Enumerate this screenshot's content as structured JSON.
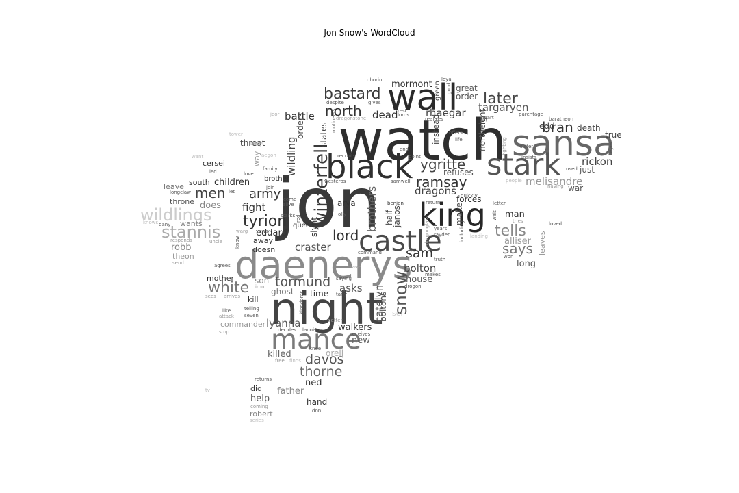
{
  "title": "Jon Snow's WordCloud",
  "words": [
    {
      "text": "jon",
      "weight": 100,
      "shade": "#3a3a3a"
    },
    {
      "text": "watch",
      "weight": 82,
      "shade": "#2e2e2e"
    },
    {
      "text": "night",
      "weight": 64,
      "shade": "#444444"
    },
    {
      "text": "daenerys",
      "weight": 56,
      "shade": "#8a8a8a"
    },
    {
      "text": "wall",
      "weight": 52,
      "shade": "#2a2a2a"
    },
    {
      "text": "sansa",
      "weight": 52,
      "shade": "#666666"
    },
    {
      "text": "black",
      "weight": 48,
      "shade": "#2f2f2f"
    },
    {
      "text": "king",
      "weight": 46,
      "shade": "#262626"
    },
    {
      "text": "stark",
      "weight": 43,
      "shade": "#555555"
    },
    {
      "text": "castle",
      "weight": 41,
      "shade": "#4a4a4a"
    },
    {
      "text": "mance",
      "weight": 39,
      "shade": "#7a7a7a"
    },
    {
      "text": "winterfell",
      "weight": 26,
      "shade": "#3a3a3a"
    },
    {
      "text": "snow",
      "weight": 25,
      "shade": "#555555"
    },
    {
      "text": "stannis",
      "weight": 24,
      "shade": "#aaaaaa"
    },
    {
      "text": "wildlings",
      "weight": 24,
      "shade": "#cccccc"
    },
    {
      "text": "bastard",
      "weight": 22,
      "shade": "#3a3a3a"
    },
    {
      "text": "later",
      "weight": 22,
      "shade": "#444444"
    },
    {
      "text": "tells",
      "weight": 22,
      "shade": "#888888"
    },
    {
      "text": "tyrion",
      "weight": 22,
      "shade": "#333333"
    },
    {
      "text": "white",
      "weight": 22,
      "shade": "#777777"
    },
    {
      "text": "north",
      "weight": 20,
      "shade": "#333333"
    },
    {
      "text": "bran",
      "weight": 20,
      "shade": "#333333"
    },
    {
      "text": "ygritte",
      "weight": 20,
      "shade": "#444444"
    },
    {
      "text": "ramsay",
      "weight": 20,
      "shade": "#333333"
    },
    {
      "text": "men",
      "weight": 20,
      "shade": "#444444"
    },
    {
      "text": "lord",
      "weight": 20,
      "shade": "#333333"
    },
    {
      "text": "says",
      "weight": 20,
      "shade": "#777777"
    },
    {
      "text": "sam",
      "weight": 19,
      "shade": "#333333"
    },
    {
      "text": "tormund",
      "weight": 19,
      "shade": "#555555"
    },
    {
      "text": "davos",
      "weight": 19,
      "shade": "#555555"
    },
    {
      "text": "thorne",
      "weight": 19,
      "shade": "#666666"
    },
    {
      "text": "army",
      "weight": 18,
      "shade": "#333333"
    },
    {
      "text": "brothers",
      "weight": 16,
      "shade": "#666666"
    },
    {
      "text": "catelyn",
      "weight": 15,
      "shade": "#555555"
    },
    {
      "text": "targaryen",
      "weight": 15,
      "shade": "#555555"
    },
    {
      "text": "dead",
      "weight": 15,
      "shade": "#333333"
    },
    {
      "text": "rhaegar",
      "weight": 15,
      "shade": "#444444"
    },
    {
      "text": "dragons",
      "weight": 15,
      "shade": "#444444"
    },
    {
      "text": "bolton",
      "weight": 15,
      "shade": "#444444"
    },
    {
      "text": "asks",
      "weight": 15,
      "shade": "#555555"
    },
    {
      "text": "lyanna",
      "weight": 15,
      "shade": "#555555"
    },
    {
      "text": "craster",
      "weight": 15,
      "shade": "#555555"
    },
    {
      "text": "fight",
      "weight": 15,
      "shade": "#333333"
    },
    {
      "text": "melisandre",
      "weight": 15,
      "shade": "#999999"
    },
    {
      "text": "rickon",
      "weight": 15,
      "shade": "#444444"
    },
    {
      "text": "wildling",
      "weight": 15,
      "shade": "#444444"
    },
    {
      "text": "battle",
      "weight": 15,
      "shade": "#333333"
    },
    {
      "text": "mormont",
      "weight": 13,
      "shade": "#333333"
    },
    {
      "text": "children",
      "weight": 13,
      "shade": "#333333"
    },
    {
      "text": "does",
      "weight": 13,
      "shade": "#888888"
    },
    {
      "text": "robb",
      "weight": 13,
      "shade": "#888888"
    },
    {
      "text": "eddard",
      "weight": 13,
      "shade": "#333333"
    },
    {
      "text": "man",
      "weight": 13,
      "shade": "#333333"
    },
    {
      "text": "alliser",
      "weight": 13,
      "shade": "#999999"
    },
    {
      "text": "long",
      "weight": 13,
      "shade": "#555555"
    },
    {
      "text": "house",
      "weight": 13,
      "shade": "#555555"
    },
    {
      "text": "walkers",
      "weight": 13,
      "shade": "#333333"
    },
    {
      "text": "new",
      "weight": 13,
      "shade": "#666666"
    },
    {
      "text": "killed",
      "weight": 13,
      "shade": "#666666"
    },
    {
      "text": "father",
      "weight": 13,
      "shade": "#888888"
    },
    {
      "text": "ned",
      "weight": 13,
      "shade": "#333333"
    },
    {
      "text": "help",
      "weight": 13,
      "shade": "#555555"
    },
    {
      "text": "hand",
      "weight": 12,
      "shade": "#333333"
    },
    {
      "text": "ghost",
      "weight": 12,
      "shade": "#777777"
    },
    {
      "text": "time",
      "weight": 12,
      "shade": "#333333"
    },
    {
      "text": "son",
      "weight": 12,
      "shade": "#888888"
    },
    {
      "text": "edd",
      "weight": 12,
      "shade": "#444444"
    },
    {
      "text": "death",
      "weight": 12,
      "shade": "#444444"
    },
    {
      "text": "true",
      "weight": 12,
      "shade": "#444444"
    },
    {
      "text": "just",
      "weight": 12,
      "shade": "#555555"
    },
    {
      "text": "war",
      "weight": 12,
      "shade": "#555555"
    },
    {
      "text": "forces",
      "weight": 12,
      "shade": "#333333"
    },
    {
      "text": "refuses",
      "weight": 12,
      "shade": "#555555"
    },
    {
      "text": "states",
      "weight": 12,
      "shade": "#444444"
    },
    {
      "text": "orders",
      "weight": 12,
      "shade": "#444444"
    },
    {
      "text": "instead",
      "weight": 12,
      "shade": "#444444"
    },
    {
      "text": "northern",
      "weight": 12,
      "shade": "#555555"
    },
    {
      "text": "right",
      "weight": 12,
      "shade": "#444444"
    },
    {
      "text": "make",
      "weight": 12,
      "shade": "#444444"
    },
    {
      "text": "leaves",
      "weight": 11,
      "shade": "#999999"
    },
    {
      "text": "great",
      "weight": 12,
      "shade": "#555555"
    },
    {
      "text": "order",
      "weight": 12,
      "shade": "#555555"
    },
    {
      "text": "arya",
      "weight": 12,
      "shade": "#333333"
    },
    {
      "text": "janos",
      "weight": 12,
      "shade": "#444444"
    },
    {
      "text": "half",
      "weight": 12,
      "shade": "#444444"
    },
    {
      "text": "slynt",
      "weight": 12,
      "shade": "#333333"
    },
    {
      "text": "boltons",
      "weight": 12,
      "shade": "#555555"
    },
    {
      "text": "orell",
      "weight": 12,
      "shade": "#aaaaaa"
    },
    {
      "text": "threat",
      "weight": 12,
      "shade": "#444444"
    },
    {
      "text": "cersei",
      "weight": 11,
      "shade": "#333333"
    },
    {
      "text": "south",
      "weight": 11,
      "shade": "#333333"
    },
    {
      "text": "leave",
      "weight": 11,
      "shade": "#777777"
    },
    {
      "text": "throne",
      "weight": 11,
      "shade": "#555555"
    },
    {
      "text": "wants",
      "weight": 11,
      "shade": "#888888"
    },
    {
      "text": "theon",
      "weight": 11,
      "shade": "#999999"
    },
    {
      "text": "away",
      "weight": 11,
      "shade": "#333333"
    },
    {
      "text": "doesn",
      "weight": 11,
      "shade": "#333333"
    },
    {
      "text": "mother",
      "weight": 11,
      "shade": "#333333"
    },
    {
      "text": "kill",
      "weight": 11,
      "shade": "#333333"
    },
    {
      "text": "queen",
      "weight": 10,
      "shade": "#333333"
    },
    {
      "text": "brother",
      "weight": 10,
      "shade": "#333333"
    },
    {
      "text": "way",
      "weight": 11,
      "shade": "#999999"
    },
    {
      "text": "commander",
      "weight": 11,
      "shade": "#999999"
    },
    {
      "text": "did",
      "weight": 11,
      "shade": "#333333"
    },
    {
      "text": "robert",
      "weight": 11,
      "shade": "#888888"
    },
    {
      "text": "ser",
      "weight": 11,
      "shade": "#cccccc"
    },
    {
      "text": "green",
      "weight": 10,
      "shade": "#444444"
    },
    {
      "text": "good",
      "weight": 7,
      "shade": "#555555"
    },
    {
      "text": "qhorin",
      "weight": 7,
      "shade": "#555555"
    },
    {
      "text": "loyal",
      "weight": 7,
      "shade": "#555555"
    },
    {
      "text": "despite",
      "weight": 7,
      "shade": "#555555"
    },
    {
      "text": "gives",
      "weight": 7,
      "shade": "#555555"
    },
    {
      "text": "rest",
      "weight": 7,
      "shade": "#555555"
    },
    {
      "text": "lords",
      "weight": 7,
      "shade": "#555555"
    },
    {
      "text": "jeor",
      "weight": 7,
      "shade": "#aaaaaa"
    },
    {
      "text": "dragonstone",
      "weight": 7,
      "shade": "#aaaaaa"
    },
    {
      "text": "mutineers",
      "weight": 7,
      "shade": "#666666"
    },
    {
      "text": "realizes",
      "weight": 7,
      "shade": "#555555"
    },
    {
      "text": "heart",
      "weight": 7,
      "shade": "#555555"
    },
    {
      "text": "parentage",
      "weight": 7,
      "shade": "#555555"
    },
    {
      "text": "baratheon",
      "weight": 7,
      "shade": "#555555"
    },
    {
      "text": "tower",
      "weight": 7,
      "shade": "#bbbbbb"
    },
    {
      "text": "body",
      "weight": 7,
      "shade": "#bbbbbb"
    },
    {
      "text": "aegon",
      "weight": 7,
      "shade": "#bbbbbb"
    },
    {
      "text": "want",
      "weight": 7,
      "shade": "#bbbbbb"
    },
    {
      "text": "recruits",
      "weight": 7,
      "shade": "#555555"
    },
    {
      "text": "end",
      "weight": 7,
      "shade": "#555555"
    },
    {
      "text": "point",
      "weight": 7,
      "shade": "#555555"
    },
    {
      "text": "offers",
      "weight": 7,
      "shade": "#555555"
    },
    {
      "text": "life",
      "weight": 7,
      "shade": "#555555"
    },
    {
      "text": "fighting",
      "weight": 7,
      "shade": "#999999"
    },
    {
      "text": "sister",
      "weight": 7,
      "shade": "#555555"
    },
    {
      "text": "eyes",
      "weight": 7,
      "shade": "#555555"
    },
    {
      "text": "insists",
      "weight": 7,
      "shade": "#555555"
    },
    {
      "text": "used",
      "weight": 7,
      "shade": "#555555"
    },
    {
      "text": "family",
      "weight": 7,
      "shade": "#555555"
    },
    {
      "text": "love",
      "weight": 7,
      "shade": "#555555"
    },
    {
      "text": "westeros",
      "weight": 7,
      "shade": "#555555"
    },
    {
      "text": "samwell",
      "weight": 7,
      "shade": "#555555"
    },
    {
      "text": "people",
      "weight": 7,
      "shade": "#bbbbbb"
    },
    {
      "text": "having",
      "weight": 7,
      "shade": "#999999"
    },
    {
      "text": "led",
      "weight": 7,
      "shade": "#555555"
    },
    {
      "text": "let",
      "weight": 7,
      "shade": "#555555"
    },
    {
      "text": "join",
      "weight": 7,
      "shade": "#555555"
    },
    {
      "text": "longclaw",
      "weight": 7,
      "shade": "#555555"
    },
    {
      "text": "benjen",
      "weight": 7,
      "shade": "#333333"
    },
    {
      "text": "return",
      "weight": 7,
      "shade": "#555555"
    },
    {
      "text": "quickly",
      "weight": 7,
      "shade": "#555555"
    },
    {
      "text": "letter",
      "weight": 7,
      "shade": "#555555"
    },
    {
      "text": "wait",
      "weight": 7,
      "shade": "#555555"
    },
    {
      "text": "tries",
      "weight": 7,
      "shade": "#999999"
    },
    {
      "text": "loved",
      "weight": 7,
      "shade": "#555555"
    },
    {
      "text": "knows",
      "weight": 7,
      "shade": "#bbbbbb"
    },
    {
      "text": "dany",
      "weight": 7,
      "shade": "#555555"
    },
    {
      "text": "red",
      "weight": 7,
      "shade": "#555555"
    },
    {
      "text": "come",
      "weight": 7,
      "shade": "#555555"
    },
    {
      "text": "alive",
      "weight": 7,
      "shade": "#555555"
    },
    {
      "text": "starks",
      "weight": 7,
      "shade": "#555555"
    },
    {
      "text": "olly",
      "weight": 7,
      "shade": "#555555"
    },
    {
      "text": "dragonglass",
      "weight": 7,
      "shade": "#999999"
    },
    {
      "text": "including",
      "weight": 7,
      "shade": "#555555"
    },
    {
      "text": "landing",
      "weight": 7,
      "shade": "#bbbbbb"
    },
    {
      "text": "warg",
      "weight": 7,
      "shade": "#999999"
    },
    {
      "text": "vows",
      "weight": 7,
      "shade": "#555555"
    },
    {
      "text": "know",
      "weight": 7,
      "shade": "#555555"
    },
    {
      "text": "responds",
      "weight": 7,
      "shade": "#999999"
    },
    {
      "text": "uncle",
      "weight": 7,
      "shade": "#999999"
    },
    {
      "text": "years",
      "weight": 7,
      "shade": "#555555"
    },
    {
      "text": "rayder",
      "weight": 7,
      "shade": "#555555"
    },
    {
      "text": "truth",
      "weight": 7,
      "shade": "#555555"
    },
    {
      "text": "won",
      "weight": 7,
      "shade": "#555555"
    },
    {
      "text": "send",
      "weight": 7,
      "shade": "#999999"
    },
    {
      "text": "command",
      "weight": 7,
      "shade": "#555555"
    },
    {
      "text": "agrees",
      "weight": 7,
      "shade": "#555555"
    },
    {
      "text": "save",
      "weight": 7,
      "shade": "#999999"
    },
    {
      "text": "makes",
      "weight": 7,
      "shade": "#555555"
    },
    {
      "text": "saying",
      "weight": 7,
      "shade": "#555555"
    },
    {
      "text": "drogon",
      "weight": 7,
      "shade": "#555555"
    },
    {
      "text": "iron",
      "weight": 7,
      "shade": "#999999"
    },
    {
      "text": "sees",
      "weight": 7,
      "shade": "#999999"
    },
    {
      "text": "arrives",
      "weight": 7,
      "shade": "#999999"
    },
    {
      "text": "tarly",
      "weight": 7,
      "shade": "#555555"
    },
    {
      "text": "kingdoms",
      "weight": 7,
      "shade": "#555555"
    },
    {
      "text": "like",
      "weight": 7,
      "shade": "#555555"
    },
    {
      "text": "attack",
      "weight": 7,
      "shade": "#999999"
    },
    {
      "text": "telling",
      "weight": 7,
      "shade": "#555555"
    },
    {
      "text": "seven",
      "weight": 7,
      "shade": "#555555"
    },
    {
      "text": "better",
      "weight": 7,
      "shade": "#999999"
    },
    {
      "text": "stop",
      "weight": 7,
      "shade": "#999999"
    },
    {
      "text": "decides",
      "weight": 7,
      "shade": "#555555"
    },
    {
      "text": "lannister",
      "weight": 7,
      "shade": "#555555"
    },
    {
      "text": "receives",
      "weight": 7,
      "shade": "#555555"
    },
    {
      "text": "knee",
      "weight": 7,
      "shade": "#555555"
    },
    {
      "text": "free",
      "weight": 7,
      "shade": "#999999"
    },
    {
      "text": "finds",
      "weight": 7,
      "shade": "#bbbbbb"
    },
    {
      "text": "returns",
      "weight": 7,
      "shade": "#555555"
    },
    {
      "text": "tv",
      "weight": 7,
      "shade": "#bbbbbb"
    },
    {
      "text": "coming",
      "weight": 7,
      "shade": "#999999"
    },
    {
      "text": "series",
      "weight": 7,
      "shade": "#bbbbbb"
    },
    {
      "text": "don",
      "weight": 7,
      "shade": "#555555"
    }
  ]
}
